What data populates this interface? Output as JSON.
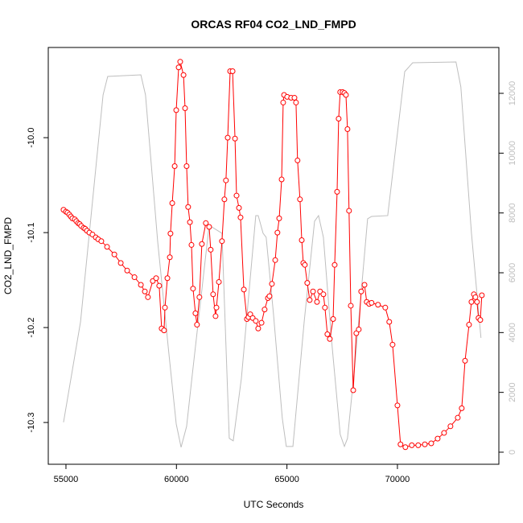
{
  "chart_data": {
    "type": "line",
    "title": "ORCAS RF04 CO2_LND_FMPD",
    "xlabel": "UTC Seconds",
    "ylabel": "CO2_LND_FMPD",
    "xlim": [
      54200,
      74590
    ],
    "xticks": [
      55000,
      60000,
      65000,
      70000
    ],
    "ylim": [
      -10.344,
      -9.905
    ],
    "yticks": [
      -10.3,
      -10.2,
      -10.1,
      {
        "value": -10,
        "label": "-10.0"
      }
    ],
    "y2lim": [
      -404,
      13534
    ],
    "y2ticks": [
      0,
      2000,
      4000,
      6000,
      8000,
      10000,
      12000
    ],
    "series": [
      {
        "color": "#bebebe",
        "axis": "y2",
        "x": [
          54890,
          55660,
          56680,
          56890,
          58390,
          58600,
          59150,
          59660,
          59990,
          60210,
          60460,
          60720,
          61480,
          62060,
          62390,
          62570,
          62940,
          63590,
          63700,
          63920,
          64060,
          64390,
          64790,
          64970,
          65270,
          65780,
          66250,
          66430,
          66650,
          67010,
          67410,
          67600,
          67740,
          68070,
          68650,
          68830,
          69560,
          70330,
          70690,
          72650,
          72870,
          73350,
          73780
        ],
        "values": [
          1000,
          4361,
          11947,
          12566,
          12619,
          11947,
          7051,
          3285,
          945,
          165,
          864,
          2613,
          7589,
          7320,
          461,
          380,
          2478,
          7912,
          7912,
          7320,
          7186,
          4630,
          1133,
          192,
          192,
          4361,
          7724,
          7912,
          7186,
          3823,
          595,
          192,
          461,
          2882,
          7804,
          7885,
          7912,
          12727,
          13023,
          13050,
          12216,
          7320,
          3823
        ]
      },
      {
        "color": "#ff0000",
        "marker": "circle",
        "x": [
          54890,
          55000,
          55070,
          55150,
          55220,
          55290,
          55400,
          55470,
          55550,
          55620,
          55690,
          55800,
          55870,
          55950,
          56060,
          56200,
          56350,
          56460,
          56600,
          56860,
          57190,
          57480,
          57770,
          58100,
          58390,
          58570,
          58710,
          58930,
          59080,
          59220,
          59330,
          59440,
          59480,
          59590,
          59700,
          59730,
          59810,
          59920,
          59990,
          60100,
          60170,
          60320,
          60390,
          60460,
          60530,
          60610,
          60680,
          60750,
          60860,
          60930,
          61040,
          61150,
          61330,
          61480,
          61550,
          61660,
          61770,
          61810,
          61920,
          62060,
          62170,
          62240,
          62320,
          62430,
          62540,
          62650,
          62720,
          62830,
          62900,
          63050,
          63190,
          63260,
          63340,
          63450,
          63590,
          63700,
          63850,
          63990,
          64140,
          64210,
          64320,
          64470,
          64570,
          64650,
          64760,
          64830,
          64870,
          65010,
          65190,
          65340,
          65410,
          65480,
          65590,
          65670,
          65740,
          65810,
          65920,
          66030,
          66180,
          66360,
          66500,
          66650,
          66720,
          66830,
          66940,
          67090,
          67160,
          67270,
          67340,
          67410,
          67520,
          67600,
          67670,
          67740,
          67810,
          67890,
          68000,
          68140,
          68250,
          68360,
          68510,
          68610,
          68720,
          68830,
          69120,
          69450,
          69630,
          69780,
          70000,
          70140,
          70360,
          70650,
          70940,
          71240,
          71530,
          71820,
          72110,
          72400,
          72730,
          72910,
          73060,
          73240,
          73350,
          73460,
          73530,
          73600,
          73670,
          73750,
          73820
        ],
        "values": [
          -10.076,
          -10.078,
          -10.079,
          -10.081,
          -10.083,
          -10.085,
          -10.086,
          -10.088,
          -10.09,
          -10.091,
          -10.093,
          -10.095,
          -10.096,
          -10.098,
          -10.1,
          -10.102,
          -10.105,
          -10.107,
          -10.109,
          -10.115,
          -10.123,
          -10.132,
          -10.14,
          -10.147,
          -10.155,
          -10.162,
          -10.168,
          -10.151,
          -10.148,
          -10.156,
          -10.201,
          -10.203,
          -10.179,
          -10.148,
          -10.126,
          -10.101,
          -10.069,
          -10.03,
          -9.971,
          -9.926,
          -9.92,
          -9.934,
          -9.969,
          -10.03,
          -10.073,
          -10.089,
          -10.113,
          -10.159,
          -10.185,
          -10.197,
          -10.168,
          -10.112,
          -10.09,
          -10.094,
          -10.118,
          -10.165,
          -10.188,
          -10.179,
          -10.152,
          -10.109,
          -10.065,
          -10.045,
          -10,
          -9.93,
          -9.93,
          -10.001,
          -10.061,
          -10.074,
          -10.084,
          -10.16,
          -10.191,
          -10.189,
          -10.186,
          -10.19,
          -10.193,
          -10.201,
          -10.195,
          -10.181,
          -10.169,
          -10.167,
          -10.154,
          -10.129,
          -10.1,
          -10.085,
          -10.044,
          -9.963,
          -9.955,
          -9.957,
          -9.958,
          -9.958,
          -9.963,
          -10.024,
          -10.065,
          -10.108,
          -10.132,
          -10.134,
          -10.153,
          -10.171,
          -10.162,
          -10.173,
          -10.162,
          -10.165,
          -10.179,
          -10.207,
          -10.212,
          -10.191,
          -10.134,
          -10.057,
          -9.98,
          -9.952,
          -9.952,
          -9.953,
          -9.955,
          -9.991,
          -10.077,
          -10.177,
          -10.266,
          -10.206,
          -10.202,
          -10.162,
          -10.155,
          -10.173,
          -10.175,
          -10.174,
          -10.176,
          -10.179,
          -10.194,
          -10.218,
          -10.282,
          -10.323,
          -10.326,
          -10.324,
          -10.324,
          -10.323,
          -10.322,
          -10.317,
          -10.311,
          -10.304,
          -10.295,
          -10.285,
          -10.235,
          -10.197,
          -10.173,
          -10.165,
          -10.168,
          -10.173,
          -10.19,
          -10.192,
          -10.166
        ]
      }
    ]
  }
}
